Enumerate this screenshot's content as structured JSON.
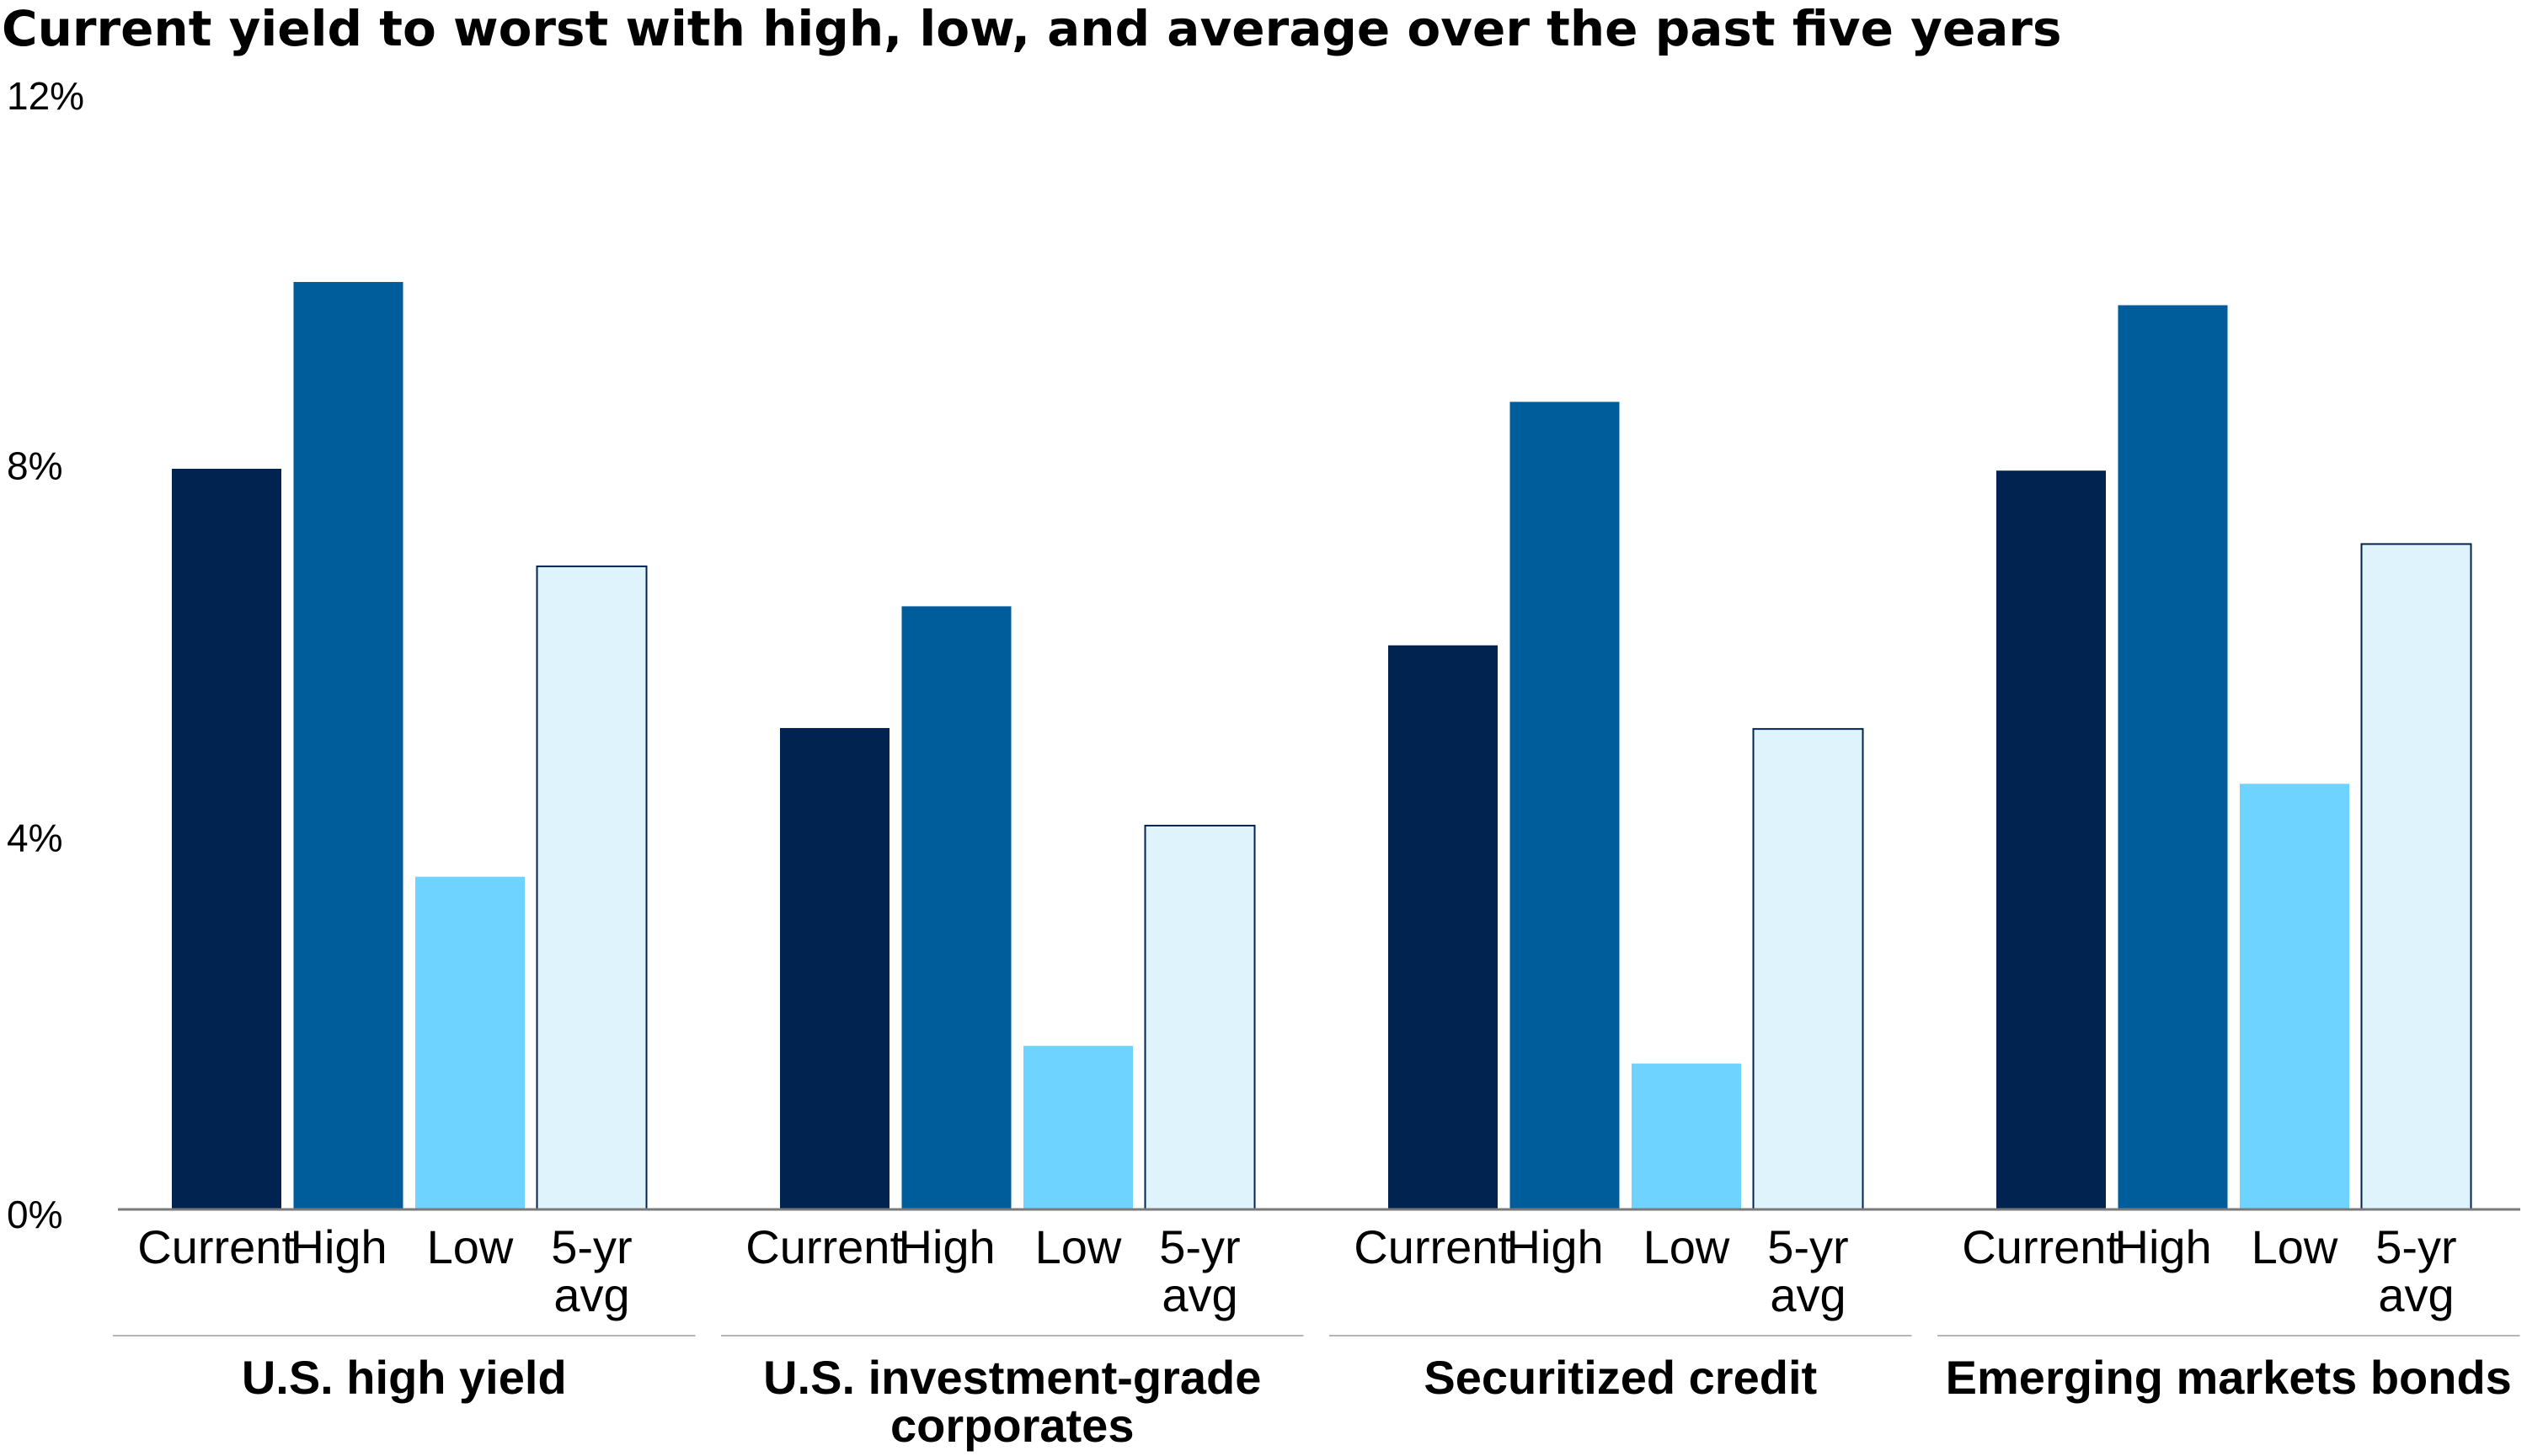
{
  "chart_data": {
    "type": "bar",
    "title": "Current yield to worst with high, low, and average over the past five years",
    "ylim": [
      0,
      12
    ],
    "y_ticks": [
      0,
      4,
      8,
      12
    ],
    "y_tick_labels": [
      "0%",
      "4%",
      "8%",
      "12%"
    ],
    "xlabel": "",
    "ylabel": "",
    "grid": false,
    "legend": "none",
    "bar_labels": [
      "Current",
      "High",
      "Low",
      "5-yr avg"
    ],
    "series_colors": [
      "#00244f",
      "#005d9c",
      "#6fd3ff",
      "#dff3fd"
    ],
    "groups": [
      {
        "name": "U.S. high yield",
        "values": [
          7.97,
          9.98,
          3.58,
          6.92
        ]
      },
      {
        "name": "U.S. investment-grade corporates",
        "values": [
          5.18,
          6.49,
          1.76,
          4.13
        ]
      },
      {
        "name": "Securitized credit",
        "values": [
          6.07,
          8.69,
          1.57,
          5.17
        ]
      },
      {
        "name": "Emerging markets bonds",
        "values": [
          7.95,
          9.73,
          4.58,
          7.16
        ]
      }
    ]
  }
}
